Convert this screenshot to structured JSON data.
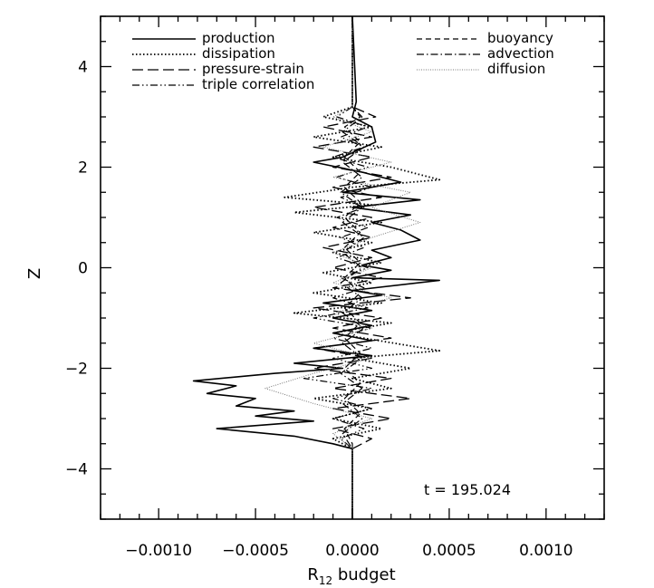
{
  "chart_data": {
    "type": "line",
    "title": "",
    "xlabel_main": "R",
    "xlabel_sub": "12",
    "xlabel_rest": " budget",
    "ylabel": "Z",
    "xlim": [
      -0.0013,
      0.0013
    ],
    "ylim": [
      -5,
      5
    ],
    "x_ticks": [
      -0.001,
      -0.0005,
      0.0,
      0.0005,
      0.001
    ],
    "x_tick_labels": [
      "−0.0010",
      "−0.0005",
      "0.0000",
      "0.0005",
      "0.0010"
    ],
    "y_ticks": [
      -4,
      -2,
      0,
      2,
      4
    ],
    "y_tick_labels": [
      "−4",
      "−2",
      "0",
      "2",
      "4"
    ],
    "grid": false,
    "legend_placement": "top",
    "annotation": "t  =  195.024",
    "series": [
      {
        "name": "production",
        "color": "#000000",
        "style": "solid",
        "points": [
          [
            0.0,
            5.0
          ],
          [
            2e-05,
            3.3
          ],
          [
            0.0,
            3.0
          ],
          [
            0.0001,
            2.8
          ],
          [
            0.00012,
            2.5
          ],
          [
            -5e-05,
            2.2
          ],
          [
            -0.0002,
            2.1
          ],
          [
            5e-05,
            1.9
          ],
          [
            0.00025,
            1.7
          ],
          [
            -5e-05,
            1.5
          ],
          [
            0.00035,
            1.35
          ],
          [
            0.0,
            1.2
          ],
          [
            0.0003,
            1.05
          ],
          [
            0.0001,
            0.9
          ],
          [
            0.00025,
            0.75
          ],
          [
            0.00035,
            0.55
          ],
          [
            0.0001,
            0.35
          ],
          [
            0.0002,
            0.2
          ],
          [
            5e-05,
            0.05
          ],
          [
            0.0002,
            -0.05
          ],
          [
            0.0,
            -0.2
          ],
          [
            0.00045,
            -0.25
          ],
          [
            0.0,
            -0.45
          ],
          [
            0.00015,
            -0.55
          ],
          [
            -0.00015,
            -0.7
          ],
          [
            0.0001,
            -0.85
          ],
          [
            -0.0001,
            -1.0
          ],
          [
            0.0001,
            -1.15
          ],
          [
            -0.0001,
            -1.3
          ],
          [
            0.0001,
            -1.45
          ],
          [
            -0.0002,
            -1.6
          ],
          [
            0.0001,
            -1.75
          ],
          [
            -0.0003,
            -1.9
          ],
          [
            -5e-05,
            -2.0
          ],
          [
            -0.0004,
            -2.1
          ],
          [
            -0.00082,
            -2.25
          ],
          [
            -0.0006,
            -2.35
          ],
          [
            -0.00075,
            -2.5
          ],
          [
            -0.0005,
            -2.6
          ],
          [
            -0.0006,
            -2.75
          ],
          [
            -0.0003,
            -2.85
          ],
          [
            -0.0005,
            -2.95
          ],
          [
            -0.0002,
            -3.05
          ],
          [
            -0.0007,
            -3.2
          ],
          [
            -0.0003,
            -3.35
          ],
          [
            -0.0001,
            -3.5
          ],
          [
            0.0,
            -3.6
          ],
          [
            0.0,
            -5.0
          ]
        ]
      },
      {
        "name": "dissipation",
        "color": "#000000",
        "style": "dotted",
        "points": [
          [
            0.0,
            5.0
          ],
          [
            0.0,
            3.2
          ],
          [
            -0.00015,
            3.0
          ],
          [
            0.0001,
            2.8
          ],
          [
            -0.0002,
            2.6
          ],
          [
            0.00015,
            2.4
          ],
          [
            -0.0001,
            2.2
          ],
          [
            0.0002,
            2.0
          ],
          [
            0.00045,
            1.75
          ],
          [
            0.0,
            1.6
          ],
          [
            -0.00035,
            1.4
          ],
          [
            0.0001,
            1.25
          ],
          [
            -0.0003,
            1.1
          ],
          [
            0.00015,
            0.9
          ],
          [
            -0.0002,
            0.7
          ],
          [
            0.0001,
            0.5
          ],
          [
            -0.0001,
            0.3
          ],
          [
            0.00015,
            0.1
          ],
          [
            -0.00015,
            -0.1
          ],
          [
            0.0001,
            -0.3
          ],
          [
            -0.0002,
            -0.5
          ],
          [
            0.00015,
            -0.7
          ],
          [
            -0.0003,
            -0.9
          ],
          [
            0.0002,
            -1.1
          ],
          [
            -0.0001,
            -1.3
          ],
          [
            0.00045,
            -1.65
          ],
          [
            0.0,
            -1.8
          ],
          [
            0.0003,
            -2.0
          ],
          [
            0.0,
            -2.2
          ],
          [
            0.0002,
            -2.4
          ],
          [
            -0.0002,
            -2.6
          ],
          [
            0.0001,
            -2.8
          ],
          [
            -0.0001,
            -3.0
          ],
          [
            0.00015,
            -3.2
          ],
          [
            -0.0001,
            -3.4
          ],
          [
            0.0,
            -3.6
          ],
          [
            0.0,
            -5.0
          ]
        ]
      },
      {
        "name": "pressure-strain",
        "color": "#000000",
        "style": "longdash",
        "points": [
          [
            0.0,
            5.0
          ],
          [
            0.0,
            3.2
          ],
          [
            0.00012,
            3.0
          ],
          [
            -0.00015,
            2.8
          ],
          [
            0.0001,
            2.6
          ],
          [
            -0.0002,
            2.4
          ],
          [
            0.0001,
            2.2
          ],
          [
            -0.0001,
            2.0
          ],
          [
            0.0002,
            1.8
          ],
          [
            -0.0001,
            1.6
          ],
          [
            0.00015,
            1.4
          ],
          [
            -0.0002,
            1.2
          ],
          [
            0.0001,
            1.0
          ],
          [
            -0.0001,
            0.8
          ],
          [
            0.0001,
            0.6
          ],
          [
            -0.00015,
            0.4
          ],
          [
            0.0001,
            0.2
          ],
          [
            -0.0001,
            0.0
          ],
          [
            0.00015,
            -0.2
          ],
          [
            -0.0001,
            -0.4
          ],
          [
            0.0003,
            -0.6
          ],
          [
            -0.0002,
            -0.8
          ],
          [
            0.00015,
            -1.0
          ],
          [
            -0.0001,
            -1.2
          ],
          [
            0.0002,
            -1.4
          ],
          [
            -0.0002,
            -1.6
          ],
          [
            0.0001,
            -1.8
          ],
          [
            -0.0002,
            -2.0
          ],
          [
            0.0002,
            -2.2
          ],
          [
            -0.0001,
            -2.4
          ],
          [
            0.0003,
            -2.6
          ],
          [
            -0.0001,
            -2.8
          ],
          [
            0.0002,
            -3.0
          ],
          [
            -0.0001,
            -3.2
          ],
          [
            0.0001,
            -3.4
          ],
          [
            0.0,
            -3.6
          ],
          [
            0.0,
            -5.0
          ]
        ]
      },
      {
        "name": "triple correlation",
        "color": "#000000",
        "style": "dashdotdot",
        "points": [
          [
            0.0,
            5.0
          ],
          [
            0.0,
            3.2
          ],
          [
            -8e-05,
            3.0
          ],
          [
            8e-05,
            2.8
          ],
          [
            -6e-05,
            2.6
          ],
          [
            6e-05,
            2.4
          ],
          [
            -0.0001,
            2.2
          ],
          [
            8e-05,
            2.0
          ],
          [
            -8e-05,
            1.8
          ],
          [
            0.0001,
            1.6
          ],
          [
            -6e-05,
            1.4
          ],
          [
            6e-05,
            1.2
          ],
          [
            -8e-05,
            1.0
          ],
          [
            8e-05,
            0.8
          ],
          [
            -6e-05,
            0.6
          ],
          [
            6e-05,
            0.4
          ],
          [
            -8e-05,
            0.2
          ],
          [
            8e-05,
            0.0
          ],
          [
            -6e-05,
            -0.2
          ],
          [
            6e-05,
            -0.4
          ],
          [
            -0.0001,
            -0.6
          ],
          [
            8e-05,
            -0.8
          ],
          [
            -0.0002,
            -1.0
          ],
          [
            0.0001,
            -1.2
          ],
          [
            -0.0001,
            -1.4
          ],
          [
            0.0001,
            -1.6
          ],
          [
            -0.0001,
            -1.8
          ],
          [
            0.0001,
            -2.0
          ],
          [
            -0.00025,
            -2.2
          ],
          [
            0.0001,
            -2.4
          ],
          [
            -0.0001,
            -2.6
          ],
          [
            0.0001,
            -2.8
          ],
          [
            -0.0001,
            -3.0
          ],
          [
            6e-05,
            -3.2
          ],
          [
            -6e-05,
            -3.4
          ],
          [
            0.0,
            -3.6
          ],
          [
            0.0,
            -5.0
          ]
        ]
      },
      {
        "name": "buoyancy",
        "color": "#000000",
        "style": "dashed",
        "points": [
          [
            0.0,
            5.0
          ],
          [
            0.0,
            3.2
          ],
          [
            4e-05,
            3.0
          ],
          [
            -4e-05,
            2.8
          ],
          [
            4e-05,
            2.5
          ],
          [
            -4e-05,
            2.2
          ],
          [
            4e-05,
            1.9
          ],
          [
            -4e-05,
            1.6
          ],
          [
            4e-05,
            1.3
          ],
          [
            -4e-05,
            1.0
          ],
          [
            4e-05,
            0.7
          ],
          [
            -4e-05,
            0.4
          ],
          [
            4e-05,
            0.1
          ],
          [
            -4e-05,
            -0.2
          ],
          [
            4e-05,
            -0.5
          ],
          [
            -4e-05,
            -0.8
          ],
          [
            4e-05,
            -1.1
          ],
          [
            -4e-05,
            -1.4
          ],
          [
            4e-05,
            -1.7
          ],
          [
            -4e-05,
            -2.0
          ],
          [
            4e-05,
            -2.3
          ],
          [
            -4e-05,
            -2.6
          ],
          [
            4e-05,
            -2.9
          ],
          [
            -4e-05,
            -3.2
          ],
          [
            0.0,
            -3.5
          ],
          [
            0.0,
            -5.0
          ]
        ]
      },
      {
        "name": "advection",
        "color": "#000000",
        "style": "dashdot",
        "points": [
          [
            0.0,
            5.0
          ],
          [
            0.0,
            3.2
          ],
          [
            5e-05,
            3.0
          ],
          [
            -5e-05,
            2.7
          ],
          [
            6e-05,
            2.4
          ],
          [
            -5e-05,
            2.1
          ],
          [
            5e-05,
            1.8
          ],
          [
            -6e-05,
            1.5
          ],
          [
            5e-05,
            1.2
          ],
          [
            -5e-05,
            0.9
          ],
          [
            6e-05,
            0.6
          ],
          [
            -5e-05,
            0.3
          ],
          [
            5e-05,
            0.0
          ],
          [
            -6e-05,
            -0.3
          ],
          [
            5e-05,
            -0.6
          ],
          [
            -5e-05,
            -0.9
          ],
          [
            6e-05,
            -1.2
          ],
          [
            -5e-05,
            -1.5
          ],
          [
            5e-05,
            -1.8
          ],
          [
            -6e-05,
            -2.1
          ],
          [
            5e-05,
            -2.4
          ],
          [
            -5e-05,
            -2.7
          ],
          [
            5e-05,
            -3.0
          ],
          [
            -5e-05,
            -3.3
          ],
          [
            0.0,
            -3.6
          ],
          [
            0.0,
            -5.0
          ]
        ]
      },
      {
        "name": "diffusion",
        "color": "#777777",
        "style": "finedot",
        "points": [
          [
            0.0,
            5.0
          ],
          [
            0.0,
            3.2
          ],
          [
            -0.0001,
            3.0
          ],
          [
            0.0001,
            2.7
          ],
          [
            -0.00015,
            2.4
          ],
          [
            0.0002,
            2.1
          ],
          [
            -0.0001,
            1.8
          ],
          [
            0.0003,
            1.5
          ],
          [
            0.0001,
            1.2
          ],
          [
            0.00035,
            0.9
          ],
          [
            0.0001,
            0.6
          ],
          [
            -0.0001,
            0.3
          ],
          [
            0.0001,
            0.0
          ],
          [
            -0.0001,
            -0.3
          ],
          [
            0.0002,
            -0.6
          ],
          [
            -0.0001,
            -0.9
          ],
          [
            0.0001,
            -1.2
          ],
          [
            -0.0002,
            -1.5
          ],
          [
            0.0001,
            -1.8
          ],
          [
            -0.0002,
            -2.1
          ],
          [
            -0.00045,
            -2.4
          ],
          [
            -0.0002,
            -2.7
          ],
          [
            0.0001,
            -3.0
          ],
          [
            -0.0001,
            -3.3
          ],
          [
            0.0,
            -3.6
          ],
          [
            0.0,
            -5.0
          ]
        ]
      }
    ]
  }
}
